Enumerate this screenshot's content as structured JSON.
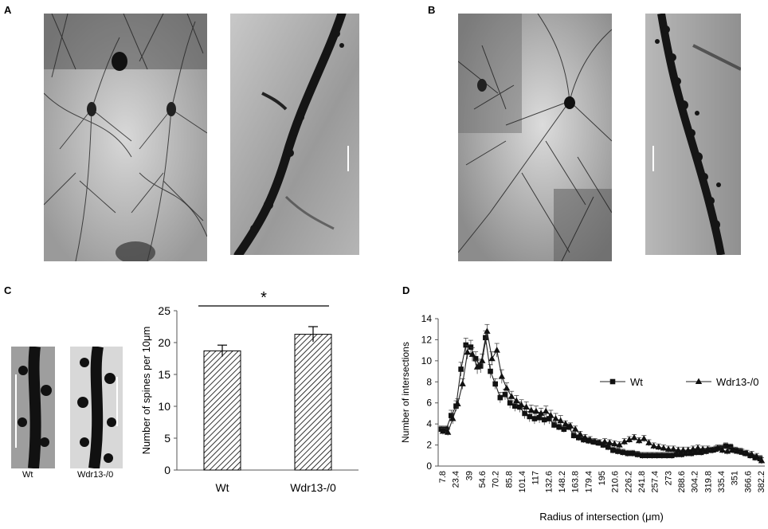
{
  "panels": {
    "a": "A",
    "b": "B",
    "c": "C",
    "d": "D"
  },
  "panel_c": {
    "image_labels": {
      "wt": "Wt",
      "ko": "Wdr13-/0"
    }
  },
  "colors": {
    "bar_fill_hatch": "#000000",
    "background": "#ffffff"
  },
  "chart_data": [
    {
      "type": "bar",
      "categories": [
        "Wt",
        "Wdr13-/0"
      ],
      "values": [
        18.7,
        21.3
      ],
      "errors": [
        0.9,
        1.2
      ],
      "ylabel": "Number of spines per 10μm",
      "xlabel": "",
      "ylim": [
        0,
        25
      ],
      "yticks": [
        "0",
        "5",
        "10",
        "15",
        "20",
        "25"
      ],
      "significance": "*",
      "grid": false
    },
    {
      "type": "line",
      "xlabel": "Radius of intersection (μm)",
      "ylabel": "Number of intersections",
      "ylim": [
        0,
        14
      ],
      "yticks": [
        "0",
        "2",
        "4",
        "6",
        "8",
        "10",
        "12",
        "14"
      ],
      "xtick_labels": [
        "7.8",
        "23.4",
        "39",
        "54.6",
        "70.2",
        "85.8",
        "101.4",
        "117",
        "132.6",
        "148.2",
        "163.8",
        "179.4",
        "195",
        "210.6",
        "226.2",
        "241.8",
        "257.4",
        "273",
        "288.6",
        "304.2",
        "319.8",
        "335.4",
        "351",
        "366.6",
        "382.2"
      ],
      "legend_position": "right",
      "series": [
        {
          "name": "Wt",
          "marker": "square",
          "values": [
            3.5,
            3.5,
            4.8,
            5.7,
            9.2,
            11.5,
            11.3,
            10.2,
            9.5,
            12.2,
            9.0,
            7.8,
            6.5,
            6.8,
            6.0,
            5.7,
            5.6,
            5.0,
            4.7,
            4.5,
            4.6,
            4.4,
            4.5,
            3.9,
            3.7,
            3.5,
            3.7,
            2.9,
            2.7,
            2.5,
            2.4,
            2.3,
            2.2,
            2.0,
            1.8,
            1.5,
            1.4,
            1.3,
            1.2,
            1.2,
            1.1,
            1.0,
            1.0,
            1.0,
            1.0,
            1.0,
            1.0,
            1.0,
            1.1,
            1.1,
            1.2,
            1.2,
            1.3,
            1.3,
            1.4,
            1.5,
            1.6,
            1.7,
            1.9,
            1.8,
            1.5,
            1.4,
            1.2,
            1.0,
            0.8,
            0.7
          ]
        },
        {
          "name": "Wdr13-/0",
          "marker": "triangle",
          "values": [
            3.3,
            3.2,
            4.5,
            5.9,
            7.8,
            10.8,
            10.6,
            9.4,
            10.0,
            12.8,
            10.2,
            11.0,
            8.5,
            7.4,
            6.6,
            6.2,
            5.8,
            5.6,
            5.3,
            5.2,
            5.0,
            5.2,
            4.8,
            4.5,
            4.3,
            4.0,
            3.8,
            3.5,
            3.0,
            2.7,
            2.5,
            2.3,
            2.2,
            2.3,
            2.2,
            2.1,
            2.0,
            2.3,
            2.5,
            2.7,
            2.4,
            2.6,
            2.2,
            1.9,
            1.8,
            1.7,
            1.6,
            1.6,
            1.5,
            1.5,
            1.5,
            1.6,
            1.7,
            1.6,
            1.6,
            1.5,
            1.7,
            1.5,
            1.4,
            1.5,
            1.4,
            1.3,
            1.2,
            1.1,
            0.9,
            0.5
          ]
        }
      ]
    }
  ]
}
